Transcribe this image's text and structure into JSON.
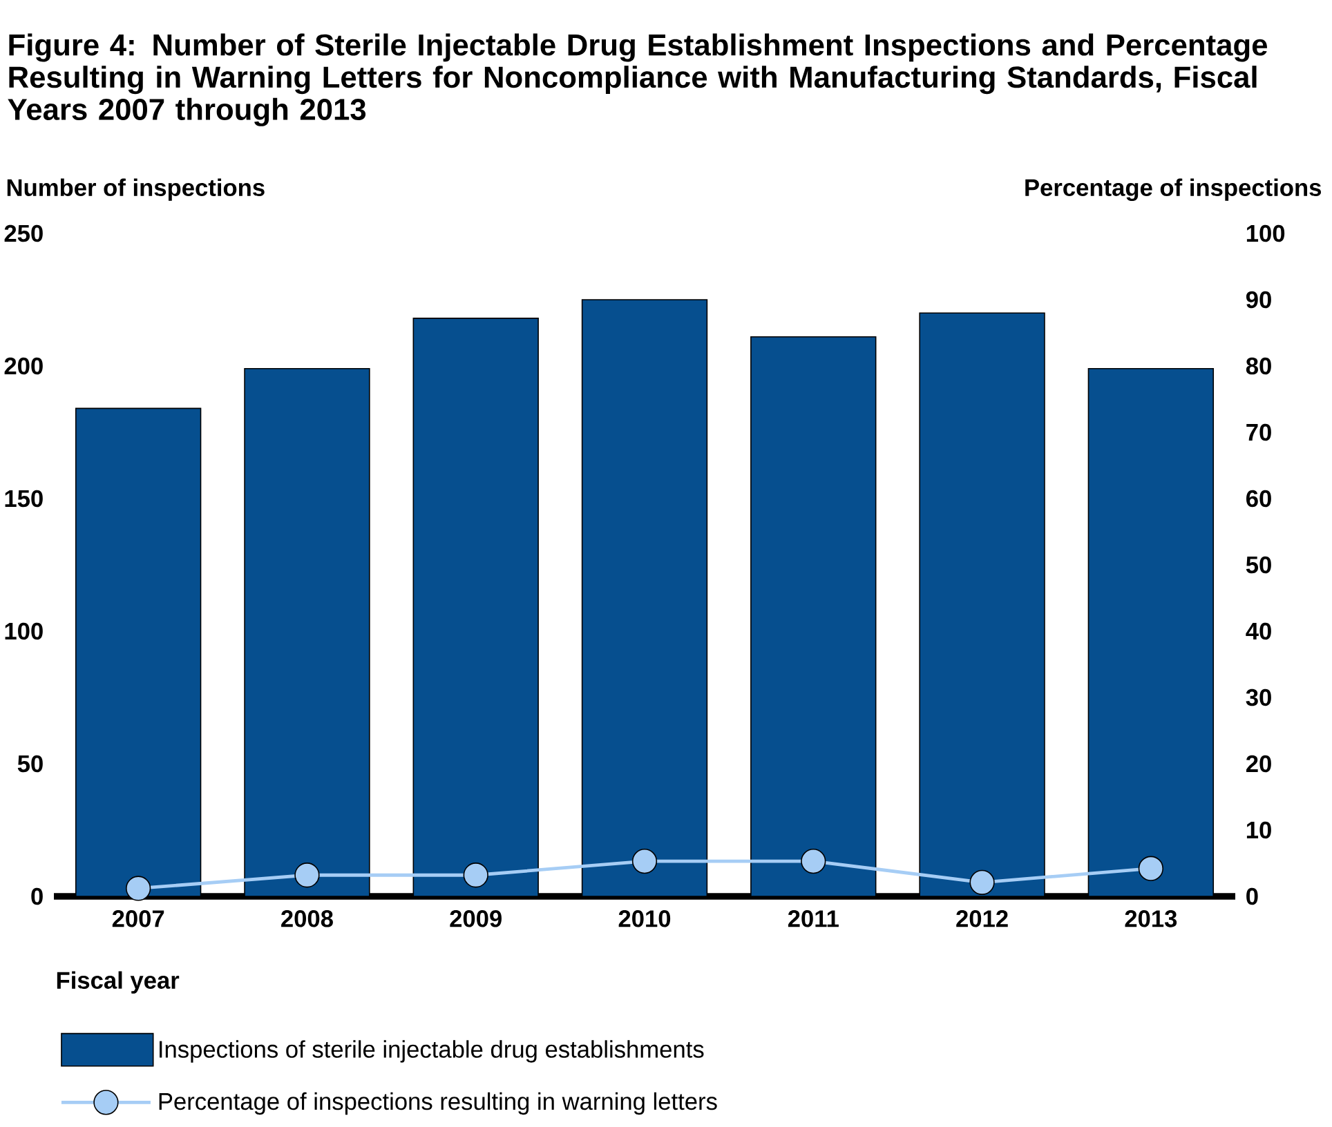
{
  "chart_data": {
    "type": "bar",
    "title": "Figure 4: Number of Sterile Injectable Drug Establishment Inspections and Percentage Resulting in Warning Letters for Noncompliance with Manufacturing Standards, Fiscal Years 2007 through 2013",
    "xlabel": "Fiscal year",
    "ylabel": "Number of inspections",
    "y2label": "Percentage of inspections",
    "categories": [
      "2007",
      "2008",
      "2009",
      "2010",
      "2011",
      "2012",
      "2013"
    ],
    "series": [
      {
        "name": "Inspections of sterile injectable drug establishments",
        "color": "#064f8f",
        "values": [
          184,
          199,
          218,
          225,
          211,
          220,
          199
        ]
      },
      {
        "name": "Percentage of inspections resulting in warning letters",
        "type": "line",
        "axis": "y2",
        "color": "#a6cdf5",
        "values": [
          1.2,
          3.2,
          3.2,
          5.3,
          5.3,
          2.1,
          4.2
        ]
      }
    ],
    "ylim": [
      0,
      250
    ],
    "yticks": [
      0,
      50,
      100,
      150,
      200,
      250
    ],
    "y2lim": [
      0,
      100
    ],
    "y2ticks": [
      0,
      10,
      20,
      30,
      40,
      50,
      60,
      70,
      80,
      90,
      100
    ],
    "marker": "circle",
    "legend": "bottom"
  }
}
